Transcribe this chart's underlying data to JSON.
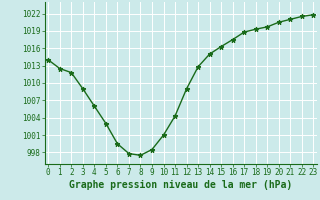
{
  "x": [
    0,
    1,
    2,
    3,
    4,
    5,
    6,
    7,
    8,
    9,
    10,
    11,
    12,
    13,
    14,
    15,
    16,
    17,
    18,
    19,
    20,
    21,
    22,
    23
  ],
  "y": [
    1014.0,
    1012.5,
    1011.8,
    1009.0,
    1006.0,
    1003.0,
    999.5,
    997.8,
    997.5,
    998.5,
    1001.0,
    1004.3,
    1009.0,
    1012.8,
    1015.0,
    1016.3,
    1017.5,
    1018.8,
    1019.3,
    1019.7,
    1020.5,
    1021.0,
    1021.5,
    1021.8
  ],
  "line_color": "#1a6b1a",
  "marker": "*",
  "marker_size": 3.5,
  "background_color": "#cceaea",
  "grid_color": "#ffffff",
  "xlabel": "Graphe pression niveau de la mer (hPa)",
  "xlabel_fontsize": 7,
  "xlabel_color": "#1a6b1a",
  "ylim": [
    996,
    1024
  ],
  "yticks": [
    998,
    1001,
    1004,
    1007,
    1010,
    1013,
    1016,
    1019,
    1022
  ],
  "xticks": [
    0,
    1,
    2,
    3,
    4,
    5,
    6,
    7,
    8,
    9,
    10,
    11,
    12,
    13,
    14,
    15,
    16,
    17,
    18,
    19,
    20,
    21,
    22,
    23
  ],
  "tick_fontsize": 5.5,
  "tick_color": "#1a6b1a",
  "spine_color": "#1a6b1a"
}
